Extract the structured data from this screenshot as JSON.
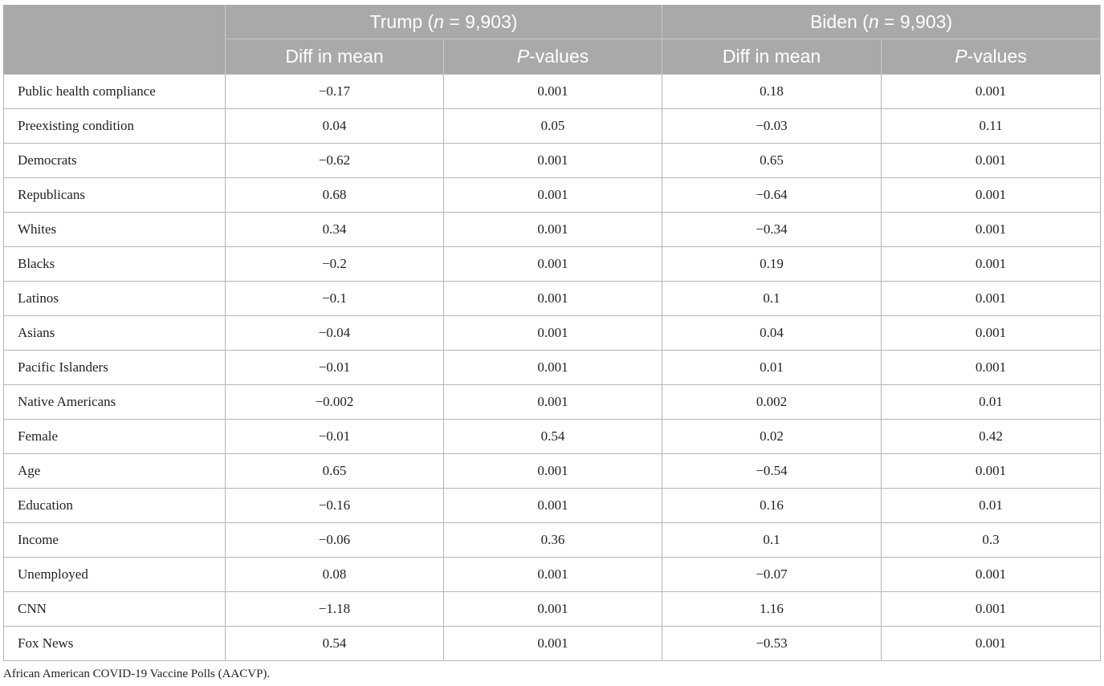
{
  "groups": [
    {
      "name": "Trump",
      "n_label": "n",
      "n_value": " = 9,903"
    },
    {
      "name": "Biden",
      "n_label": "n",
      "n_value": " = 9,903"
    }
  ],
  "subheaders": {
    "diff": "Diff in mean",
    "p_italic": "P",
    "p_rest": "-values"
  },
  "rows": [
    {
      "label": "Public health compliance",
      "trump_diff": "−0.17",
      "trump_p": "0.001",
      "biden_diff": "0.18",
      "biden_p": "0.001"
    },
    {
      "label": "Preexisting condition",
      "trump_diff": "0.04",
      "trump_p": "0.05",
      "biden_diff": "−0.03",
      "biden_p": "0.11"
    },
    {
      "label": "Democrats",
      "trump_diff": "−0.62",
      "trump_p": "0.001",
      "biden_diff": "0.65",
      "biden_p": "0.001"
    },
    {
      "label": "Republicans",
      "trump_diff": "0.68",
      "trump_p": "0.001",
      "biden_diff": "−0.64",
      "biden_p": "0.001"
    },
    {
      "label": "Whites",
      "trump_diff": "0.34",
      "trump_p": "0.001",
      "biden_diff": "−0.34",
      "biden_p": "0.001"
    },
    {
      "label": "Blacks",
      "trump_diff": "−0.2",
      "trump_p": "0.001",
      "biden_diff": "0.19",
      "biden_p": "0.001"
    },
    {
      "label": "Latinos",
      "trump_diff": "−0.1",
      "trump_p": "0.001",
      "biden_diff": "0.1",
      "biden_p": "0.001"
    },
    {
      "label": "Asians",
      "trump_diff": "−0.04",
      "trump_p": "0.001",
      "biden_diff": "0.04",
      "biden_p": "0.001"
    },
    {
      "label": "Pacific Islanders",
      "trump_diff": "−0.01",
      "trump_p": "0.001",
      "biden_diff": "0.01",
      "biden_p": "0.001"
    },
    {
      "label": "Native Americans",
      "trump_diff": "−0.002",
      "trump_p": "0.001",
      "biden_diff": "0.002",
      "biden_p": "0.01"
    },
    {
      "label": "Female",
      "trump_diff": "−0.01",
      "trump_p": "0.54",
      "biden_diff": "0.02",
      "biden_p": "0.42"
    },
    {
      "label": "Age",
      "trump_diff": "0.65",
      "trump_p": "0.001",
      "biden_diff": "−0.54",
      "biden_p": "0.001"
    },
    {
      "label": "Education",
      "trump_diff": "−0.16",
      "trump_p": "0.001",
      "biden_diff": "0.16",
      "biden_p": "0.01"
    },
    {
      "label": "Income",
      "trump_diff": "−0.06",
      "trump_p": "0.36",
      "biden_diff": "0.1",
      "biden_p": "0.3"
    },
    {
      "label": "Unemployed",
      "trump_diff": "0.08",
      "trump_p": "0.001",
      "biden_diff": "−0.07",
      "biden_p": "0.001"
    },
    {
      "label": "CNN",
      "trump_diff": "−1.18",
      "trump_p": "0.001",
      "biden_diff": "1.16",
      "biden_p": "0.001"
    },
    {
      "label": "Fox News",
      "trump_diff": "0.54",
      "trump_p": "0.001",
      "biden_diff": "−0.53",
      "biden_p": "0.001"
    }
  ],
  "note": "African American COVID-19 Vaccine Polls (AACVP)."
}
